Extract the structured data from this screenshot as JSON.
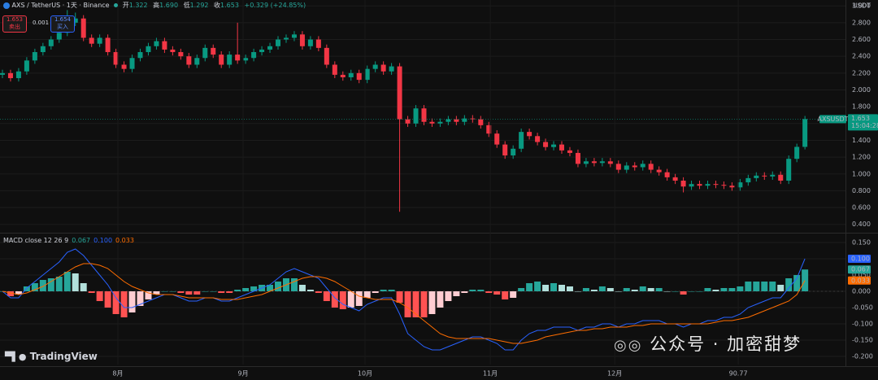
{
  "header": {
    "symbol": "AXS / TetherUS · 1天 · Binance",
    "open_label": "开",
    "open": "1.322",
    "high_label": "高",
    "high": "1.690",
    "low_label": "低",
    "low": "1.292",
    "close_label": "收",
    "close": "1.653",
    "change": "+0.329 (+24.85%)"
  },
  "trade": {
    "sell_price": "1.653",
    "sell_label": "卖出",
    "spread": "0.001",
    "buy_price": "1.654",
    "buy_label": "买入"
  },
  "watermark": {
    "brand": "TradingView",
    "credit": "公众号 · 加密甜梦"
  },
  "chart_data": [
    {
      "type": "candlestick",
      "currency": "USDT",
      "symbol_tag": "AXSUSDT",
      "last_price": 1.653,
      "countdown": "15:04:28",
      "up_color": "#089981",
      "down_color": "#f23645",
      "open": [
        2.18,
        2.2,
        2.14,
        2.22,
        2.35,
        2.45,
        2.52,
        2.6,
        2.68,
        2.8,
        2.85,
        2.62,
        2.55,
        2.62,
        2.45,
        2.3,
        2.25,
        2.38,
        2.45,
        2.52,
        2.58,
        2.48,
        2.45,
        2.4,
        2.3,
        2.38,
        2.5,
        2.42,
        2.3,
        2.42,
        2.35,
        2.38,
        2.45,
        2.48,
        2.52,
        2.6,
        2.62,
        2.66,
        2.52,
        2.6,
        2.5,
        2.3,
        2.18,
        2.15,
        2.2,
        2.12,
        2.25,
        2.3,
        2.22,
        2.28,
        1.65,
        1.6,
        1.78,
        1.62,
        1.6,
        1.62,
        1.65,
        1.62,
        1.66,
        1.65,
        1.58,
        1.48,
        1.35,
        1.22,
        1.3,
        1.5,
        1.45,
        1.38,
        1.32,
        1.35,
        1.28,
        1.25,
        1.12,
        1.15,
        1.13,
        1.15,
        1.12,
        1.05,
        1.1,
        1.08,
        1.12,
        1.05,
        1.02,
        0.96,
        0.92,
        0.85,
        0.88,
        0.86,
        0.88,
        0.87,
        0.86,
        0.84,
        0.9,
        0.95,
        0.98,
        0.97,
        0.99,
        0.92,
        1.18,
        1.322
      ],
      "high": [
        2.24,
        2.24,
        2.26,
        2.39,
        2.49,
        2.56,
        2.64,
        2.72,
        2.95,
        2.92,
        2.89,
        2.66,
        2.66,
        2.66,
        2.49,
        2.34,
        2.42,
        2.49,
        2.56,
        2.62,
        2.62,
        2.52,
        2.49,
        2.44,
        2.42,
        2.54,
        2.54,
        2.46,
        2.46,
        2.8,
        2.42,
        2.49,
        2.52,
        2.56,
        2.64,
        2.66,
        2.7,
        2.7,
        2.64,
        2.64,
        2.54,
        2.34,
        2.22,
        2.24,
        2.24,
        2.29,
        2.34,
        2.34,
        2.32,
        2.32,
        1.69,
        1.82,
        1.82,
        1.66,
        1.66,
        1.69,
        1.69,
        1.7,
        1.7,
        1.69,
        1.62,
        1.52,
        1.39,
        1.34,
        1.54,
        1.54,
        1.49,
        1.42,
        1.39,
        1.39,
        1.32,
        1.29,
        1.19,
        1.19,
        1.19,
        1.19,
        1.16,
        1.14,
        1.14,
        1.16,
        1.16,
        1.09,
        1.06,
        1.0,
        0.96,
        0.92,
        0.92,
        0.92,
        0.92,
        0.91,
        0.9,
        0.94,
        0.99,
        1.02,
        1.02,
        1.03,
        1.03,
        1.22,
        1.36,
        1.69
      ],
      "low": [
        2.14,
        2.1,
        2.1,
        2.18,
        2.31,
        2.41,
        2.48,
        2.56,
        2.64,
        2.76,
        2.58,
        2.51,
        2.51,
        2.41,
        2.26,
        2.21,
        2.21,
        2.34,
        2.41,
        2.48,
        2.44,
        2.41,
        2.36,
        2.26,
        2.26,
        2.34,
        2.38,
        2.26,
        2.26,
        2.31,
        2.31,
        2.34,
        2.41,
        2.44,
        2.48,
        2.56,
        2.58,
        2.48,
        2.48,
        2.46,
        2.26,
        2.14,
        2.11,
        2.11,
        2.08,
        2.08,
        2.21,
        2.18,
        2.18,
        0.55,
        1.56,
        1.56,
        1.58,
        1.56,
        1.56,
        1.58,
        1.58,
        1.58,
        1.61,
        1.54,
        1.44,
        1.31,
        1.18,
        1.18,
        1.26,
        1.41,
        1.34,
        1.28,
        1.28,
        1.24,
        1.21,
        1.08,
        1.08,
        1.09,
        1.09,
        1.08,
        1.01,
        1.01,
        1.04,
        1.04,
        1.01,
        0.98,
        0.92,
        0.88,
        0.78,
        0.81,
        0.82,
        0.82,
        0.83,
        0.82,
        0.8,
        0.8,
        0.86,
        0.91,
        0.93,
        0.93,
        0.88,
        0.88,
        1.14,
        1.292
      ],
      "close": [
        2.2,
        2.14,
        2.22,
        2.35,
        2.45,
        2.52,
        2.6,
        2.68,
        2.8,
        2.85,
        2.62,
        2.55,
        2.62,
        2.45,
        2.3,
        2.25,
        2.38,
        2.45,
        2.52,
        2.58,
        2.48,
        2.45,
        2.4,
        2.3,
        2.38,
        2.5,
        2.42,
        2.3,
        2.42,
        2.35,
        2.38,
        2.45,
        2.48,
        2.52,
        2.6,
        2.62,
        2.66,
        2.52,
        2.6,
        2.5,
        2.3,
        2.18,
        2.15,
        2.2,
        2.12,
        2.25,
        2.3,
        2.22,
        2.28,
        1.65,
        1.6,
        1.78,
        1.62,
        1.6,
        1.62,
        1.65,
        1.62,
        1.66,
        1.65,
        1.58,
        1.48,
        1.35,
        1.22,
        1.3,
        1.5,
        1.45,
        1.38,
        1.32,
        1.35,
        1.28,
        1.25,
        1.12,
        1.15,
        1.13,
        1.15,
        1.12,
        1.05,
        1.1,
        1.08,
        1.12,
        1.05,
        1.02,
        0.96,
        0.92,
        0.85,
        0.88,
        0.86,
        0.88,
        0.87,
        0.86,
        0.84,
        0.9,
        0.95,
        0.98,
        0.97,
        0.99,
        0.92,
        1.18,
        1.322,
        1.653
      ],
      "xlim": [
        -0.3,
        104
      ],
      "ylim": [
        0.31,
        3.07
      ],
      "yticks": [
        {
          "value": 0.4,
          "label": "0.400"
        },
        {
          "value": 0.6,
          "label": "0.600"
        },
        {
          "value": 0.8,
          "label": "0.800"
        },
        {
          "value": 1,
          "label": "1.000"
        },
        {
          "value": 1.2,
          "label": "1.200"
        },
        {
          "value": 1.4,
          "label": "1.400"
        },
        {
          "value": 1.6,
          "label": "1.600"
        },
        {
          "value": 1.8,
          "label": "1.800"
        },
        {
          "value": 2,
          "label": "2.000"
        },
        {
          "value": 2.2,
          "label": "2.200"
        },
        {
          "value": 2.4,
          "label": "2.400"
        },
        {
          "value": 2.6,
          "label": "2.600"
        },
        {
          "value": 2.8,
          "label": "2.800"
        },
        {
          "value": 3,
          "label": "3.000"
        }
      ]
    },
    {
      "type": "macd",
      "label": "MACD close 12 26 9",
      "macd_color": "#2962ff",
      "signal_color": "#ff6d00",
      "hist_colors": {
        "pos_rise": "#26a69a",
        "pos_fall": "#b2dfdb",
        "neg_fall": "#ff5252",
        "neg_rise": "#ffcdd2"
      },
      "histogram": [
        0.0,
        -0.015,
        -0.01,
        0.015,
        0.025,
        0.035,
        0.04,
        0.045,
        0.06,
        0.055,
        0.025,
        -0.005,
        -0.03,
        -0.05,
        -0.07,
        -0.08,
        -0.065,
        -0.045,
        -0.025,
        -0.01,
        0.0,
        0.0,
        -0.005,
        -0.01,
        -0.01,
        0.0,
        0.0,
        -0.005,
        -0.005,
        0.005,
        0.01,
        0.015,
        0.02,
        0.02,
        0.03,
        0.04,
        0.04,
        0.02,
        0.005,
        -0.005,
        -0.03,
        -0.05,
        -0.055,
        -0.05,
        -0.045,
        -0.02,
        -0.005,
        0.005,
        0.005,
        -0.035,
        -0.08,
        -0.08,
        -0.08,
        -0.07,
        -0.05,
        -0.03,
        -0.015,
        -0.005,
        0.005,
        0.005,
        -0.005,
        -0.01,
        -0.025,
        -0.02,
        0.01,
        0.025,
        0.03,
        0.02,
        0.025,
        0.02,
        0.015,
        0.0,
        0.01,
        0.005,
        0.015,
        0.01,
        0.0,
        0.01,
        0.005,
        0.015,
        0.01,
        0.01,
        0.0,
        0.0,
        -0.01,
        0.0,
        0.0,
        0.01,
        0.005,
        0.01,
        0.01,
        0.015,
        0.03,
        0.03,
        0.03,
        0.03,
        0.02,
        0.04,
        0.05,
        0.067
      ],
      "macd": [
        0.0,
        -0.02,
        -0.02,
        0.01,
        0.03,
        0.05,
        0.07,
        0.09,
        0.12,
        0.13,
        0.11,
        0.08,
        0.05,
        0.02,
        -0.02,
        -0.05,
        -0.05,
        -0.04,
        -0.03,
        -0.02,
        -0.01,
        -0.01,
        -0.02,
        -0.03,
        -0.03,
        -0.02,
        -0.02,
        -0.03,
        -0.03,
        -0.02,
        -0.01,
        0.0,
        0.01,
        0.02,
        0.04,
        0.06,
        0.07,
        0.06,
        0.05,
        0.04,
        0.01,
        -0.02,
        -0.04,
        -0.05,
        -0.06,
        -0.04,
        -0.03,
        -0.02,
        -0.02,
        -0.07,
        -0.13,
        -0.15,
        -0.17,
        -0.18,
        -0.18,
        -0.17,
        -0.16,
        -0.15,
        -0.14,
        -0.14,
        -0.15,
        -0.16,
        -0.18,
        -0.18,
        -0.15,
        -0.13,
        -0.12,
        -0.12,
        -0.11,
        -0.11,
        -0.11,
        -0.12,
        -0.11,
        -0.11,
        -0.1,
        -0.1,
        -0.11,
        -0.1,
        -0.1,
        -0.09,
        -0.09,
        -0.09,
        -0.1,
        -0.1,
        -0.11,
        -0.1,
        -0.1,
        -0.09,
        -0.09,
        -0.08,
        -0.08,
        -0.07,
        -0.05,
        -0.04,
        -0.03,
        -0.02,
        -0.02,
        0.01,
        0.04,
        0.1
      ],
      "signal": [
        0.0,
        -0.005,
        -0.01,
        -0.005,
        0.005,
        0.015,
        0.03,
        0.045,
        0.06,
        0.075,
        0.085,
        0.085,
        0.08,
        0.07,
        0.05,
        0.03,
        0.015,
        0.005,
        -0.005,
        -0.01,
        -0.01,
        -0.01,
        -0.015,
        -0.02,
        -0.02,
        -0.02,
        -0.02,
        -0.025,
        -0.025,
        -0.025,
        -0.02,
        -0.015,
        -0.01,
        0.0,
        0.01,
        0.02,
        0.03,
        0.04,
        0.045,
        0.045,
        0.04,
        0.03,
        0.015,
        0.0,
        -0.015,
        -0.02,
        -0.025,
        -0.025,
        -0.025,
        -0.035,
        -0.05,
        -0.07,
        -0.09,
        -0.11,
        -0.13,
        -0.14,
        -0.145,
        -0.145,
        -0.145,
        -0.145,
        -0.145,
        -0.15,
        -0.155,
        -0.16,
        -0.16,
        -0.155,
        -0.15,
        -0.14,
        -0.135,
        -0.13,
        -0.125,
        -0.12,
        -0.12,
        -0.115,
        -0.115,
        -0.11,
        -0.11,
        -0.11,
        -0.105,
        -0.105,
        -0.1,
        -0.1,
        -0.1,
        -0.1,
        -0.1,
        -0.1,
        -0.1,
        -0.1,
        -0.095,
        -0.09,
        -0.09,
        -0.085,
        -0.08,
        -0.07,
        -0.06,
        -0.05,
        -0.04,
        -0.03,
        -0.01,
        0.033
      ],
      "histogram_last_label": "0.067",
      "macd_last_label": "0.100",
      "signal_last_label": "0.033",
      "xlim": [
        -0.3,
        104
      ],
      "ylim": [
        -0.225,
        0.175
      ],
      "yticks": [
        {
          "value": -0.2,
          "label": "-0.200"
        },
        {
          "value": -0.15,
          "label": "-0.150"
        },
        {
          "value": -0.1,
          "label": "-0.100"
        },
        {
          "value": -0.05,
          "label": "-0.050"
        },
        {
          "value": 0,
          "label": "0.000"
        },
        {
          "value": 0.05,
          "label": "0.050"
        },
        {
          "value": 0.1,
          "label": "0.100"
        },
        {
          "value": 0.15,
          "label": "0.150"
        }
      ],
      "xticks": [
        {
          "value": 14.24,
          "label": "8月"
        },
        {
          "value": 29.69,
          "label": "9月"
        },
        {
          "value": 44.73,
          "label": "10月"
        },
        {
          "value": 60.18,
          "label": "11月"
        },
        {
          "value": 75.53,
          "label": "12月"
        },
        90.77
      ]
    }
  ]
}
